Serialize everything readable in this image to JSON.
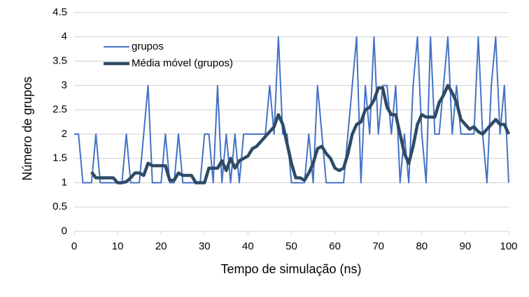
{
  "chart_data": {
    "type": "line",
    "x_label": "Tempo de simulação (ns)",
    "y_label": "Número de grupos",
    "xlim": [
      0,
      100
    ],
    "xticks": [
      0,
      10,
      20,
      30,
      40,
      50,
      60,
      70,
      80,
      90,
      100
    ],
    "ylim": [
      0,
      4.5
    ],
    "yticks": [
      0,
      0.5,
      1,
      1.5,
      2,
      2.5,
      3,
      3.5,
      4,
      4.5
    ],
    "grid": true,
    "legend": "upper left",
    "series": [
      {
        "name": "grupos",
        "color": "#4472c4",
        "width": 2,
        "x": [
          0,
          1,
          2,
          3,
          4,
          5,
          6,
          7,
          8,
          9,
          10,
          11,
          12,
          13,
          14,
          15,
          16,
          17,
          18,
          19,
          20,
          21,
          22,
          23,
          24,
          25,
          26,
          27,
          28,
          29,
          30,
          31,
          32,
          33,
          34,
          35,
          36,
          37,
          38,
          39,
          40,
          41,
          42,
          43,
          44,
          45,
          46,
          47,
          48,
          49,
          50,
          51,
          52,
          53,
          54,
          55,
          56,
          57,
          58,
          59,
          60,
          61,
          62,
          63,
          64,
          65,
          66,
          67,
          68,
          69,
          70,
          71,
          72,
          73,
          74,
          75,
          76,
          77,
          78,
          79,
          80,
          81,
          82,
          83,
          84,
          85,
          86,
          87,
          88,
          89,
          90,
          91,
          92,
          93,
          94,
          95,
          96,
          97,
          98,
          99,
          100
        ],
        "values": [
          2,
          2,
          1,
          1,
          1,
          2,
          1,
          1,
          1,
          1,
          1,
          1,
          2,
          1,
          1,
          1,
          2,
          3,
          1,
          1,
          1,
          2,
          1,
          1,
          2,
          1,
          1,
          1,
          1,
          1,
          2,
          2,
          1,
          3,
          1,
          2,
          1,
          2,
          1,
          2,
          2,
          2,
          2,
          2,
          2,
          3,
          2,
          4,
          2,
          2,
          1,
          1,
          1,
          1,
          2,
          1,
          3,
          2,
          1,
          1,
          1,
          1,
          1,
          2,
          3,
          4,
          1,
          3,
          2,
          4,
          2,
          3,
          3,
          2,
          3,
          1,
          2,
          1,
          3,
          4,
          2,
          1,
          4,
          2,
          2,
          3,
          4,
          2,
          3,
          2,
          2,
          2,
          2,
          4,
          2,
          1,
          3,
          4,
          2,
          3,
          1
        ]
      },
      {
        "name": "Média móvel (grupos)",
        "color": "#2e4a66",
        "width": 4.5,
        "x": [
          4,
          5,
          6,
          7,
          8,
          9,
          10,
          11,
          12,
          13,
          14,
          15,
          16,
          17,
          18,
          19,
          20,
          21,
          22,
          23,
          24,
          25,
          26,
          27,
          28,
          29,
          30,
          31,
          32,
          33,
          34,
          35,
          36,
          37,
          38,
          39,
          40,
          41,
          42,
          43,
          44,
          45,
          46,
          47,
          48,
          49,
          50,
          51,
          52,
          53,
          54,
          55,
          56,
          57,
          58,
          59,
          60,
          61,
          62,
          63,
          64,
          65,
          66,
          67,
          68,
          69,
          70,
          71,
          72,
          73,
          74,
          75,
          76,
          77,
          78,
          79,
          80,
          81,
          82,
          83,
          84,
          85,
          86,
          87,
          88,
          89,
          90,
          91,
          92,
          93,
          94,
          95,
          96,
          97,
          98,
          99,
          100
        ],
        "values": [
          1.22,
          1.1,
          1.1,
          1.1,
          1.1,
          1.1,
          1,
          1,
          1.02,
          1.1,
          1.2,
          1.2,
          1.15,
          1.4,
          1.35,
          1.35,
          1.35,
          1.35,
          1.05,
          1.05,
          1.2,
          1.15,
          1.15,
          1.15,
          1,
          1,
          1,
          1.3,
          1.3,
          1.3,
          1.45,
          1.25,
          1.5,
          1.3,
          1.45,
          1.5,
          1.55,
          1.7,
          1.75,
          1.85,
          1.95,
          2.05,
          2.15,
          2.4,
          2.2,
          1.8,
          1.4,
          1.1,
          1.1,
          1.05,
          1.2,
          1.4,
          1.7,
          1.75,
          1.6,
          1.5,
          1.3,
          1.25,
          1.3,
          1.6,
          2.0,
          2.2,
          2.25,
          2.5,
          2.55,
          2.7,
          2.95,
          2.95,
          2.55,
          2.4,
          2.4,
          2.0,
          1.6,
          1.4,
          1.75,
          2.2,
          2.4,
          2.35,
          2.35,
          2.35,
          2.65,
          2.8,
          3.0,
          2.85,
          2.65,
          2.3,
          2.2,
          2.1,
          2.15,
          2.05,
          2.0,
          2.1,
          2.2,
          2.3,
          2.2,
          2.2,
          2.0
        ]
      }
    ]
  }
}
